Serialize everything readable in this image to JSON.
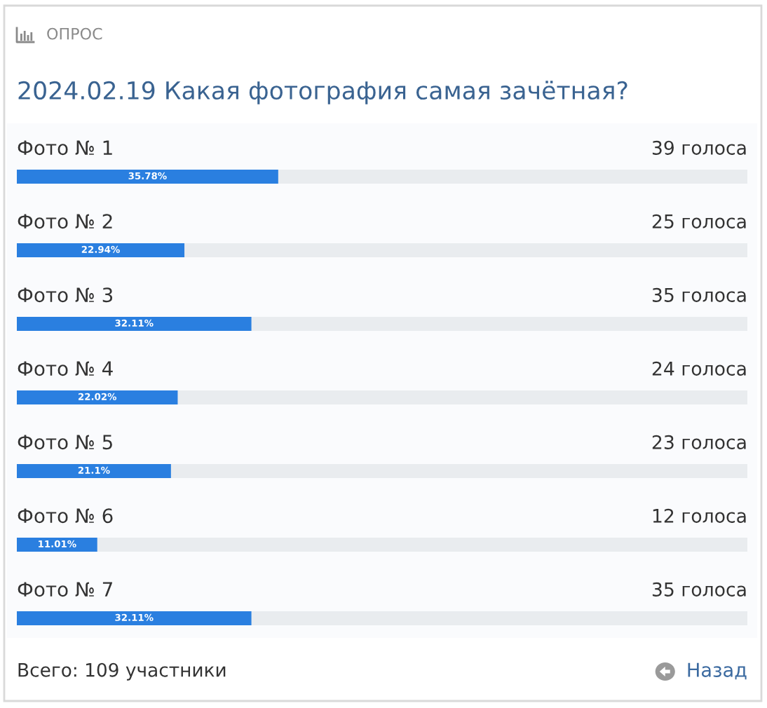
{
  "chart_data": {
    "type": "bar",
    "orientation": "horizontal",
    "subtitle": "ОПРОС",
    "title": "2024.02.19 Какая фотография самая зачётная?",
    "categories": [
      "Фото № 1",
      "Фото № 2",
      "Фото № 3",
      "Фото № 4",
      "Фото № 5",
      "Фото № 6",
      "Фото № 7"
    ],
    "values": [
      35.78,
      22.94,
      32.11,
      22.02,
      21.1,
      11.01,
      32.11
    ],
    "value_labels": [
      "35.78%",
      "22.94%",
      "32.11%",
      "22.02%",
      "21.1%",
      "11.01%",
      "32.11%"
    ],
    "color": "#2a7fe0",
    "xlim": [
      0,
      100
    ],
    "annotations": [
      "39 голоса",
      "25 голоса",
      "35 голоса",
      "24 голоса",
      "23 голоса",
      "12 голоса",
      "35 голоса",
      "Всего: 109 участники",
      "Назад"
    ]
  }
}
